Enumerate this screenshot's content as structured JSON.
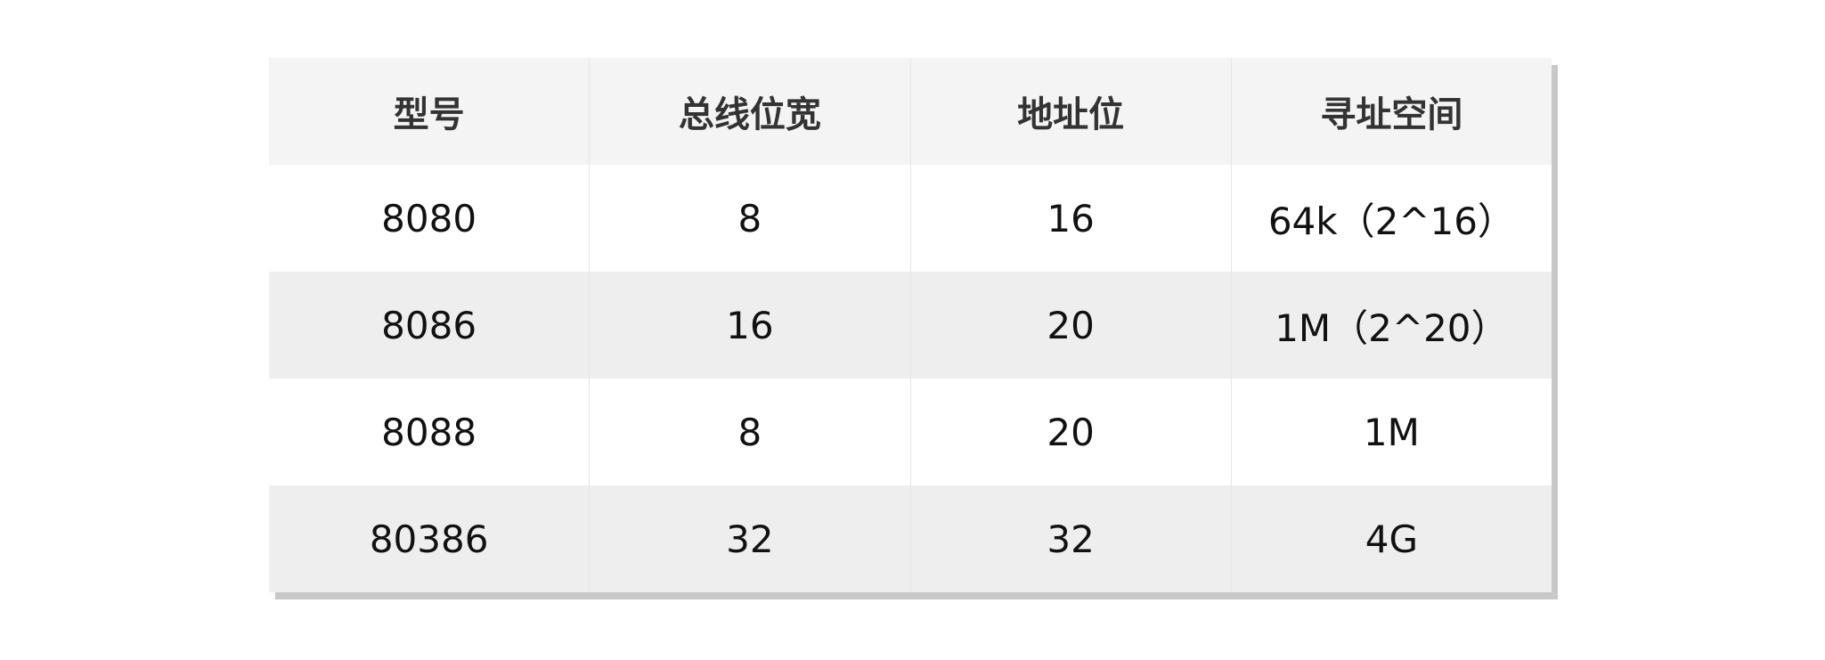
{
  "table": {
    "header": [
      "型号",
      "总线位宽",
      "地址位",
      "寻址空间"
    ],
    "rows": [
      [
        "8080",
        "8",
        "16",
        "64k（2^16）"
      ],
      [
        "8086",
        "16",
        "20",
        "1M（2^20）"
      ],
      [
        "8088",
        "8",
        "20",
        "1M"
      ],
      [
        "80386",
        "32",
        "32",
        "4G"
      ]
    ]
  }
}
